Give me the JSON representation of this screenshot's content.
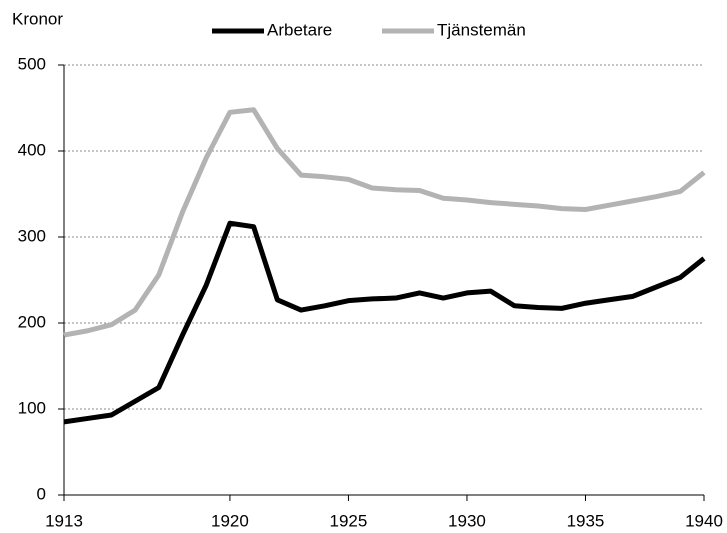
{
  "chart_data": {
    "type": "line",
    "y_label": "Kronor",
    "x": [
      1913,
      1914,
      1915,
      1916,
      1917,
      1918,
      1919,
      1920,
      1921,
      1922,
      1923,
      1924,
      1925,
      1926,
      1927,
      1928,
      1929,
      1930,
      1931,
      1932,
      1933,
      1934,
      1935,
      1936,
      1937,
      1938,
      1939,
      1940
    ],
    "series": [
      {
        "name": "Arbetare",
        "color": "#000000",
        "values": [
          85,
          89,
          93,
          109,
          125,
          186,
          244,
          316,
          312,
          227,
          215,
          220,
          226,
          228,
          229,
          235,
          229,
          235,
          237,
          220,
          218,
          217,
          223,
          227,
          231,
          242,
          253,
          275
        ]
      },
      {
        "name": "Tjänstemän",
        "color": "#b3b3b3",
        "values": [
          186,
          191,
          198,
          215,
          256,
          329,
          392,
          445,
          448,
          403,
          372,
          370,
          367,
          357,
          355,
          354,
          345,
          343,
          340,
          338,
          336,
          333,
          332,
          337,
          342,
          347,
          353,
          375
        ]
      }
    ],
    "xlim": [
      1913,
      1940
    ],
    "xticks": [
      1913,
      1920,
      1925,
      1930,
      1935,
      1940
    ],
    "ylim": [
      0,
      500
    ],
    "yticks": [
      0,
      100,
      200,
      300,
      400,
      500
    ],
    "grid": true,
    "legend": "top"
  }
}
